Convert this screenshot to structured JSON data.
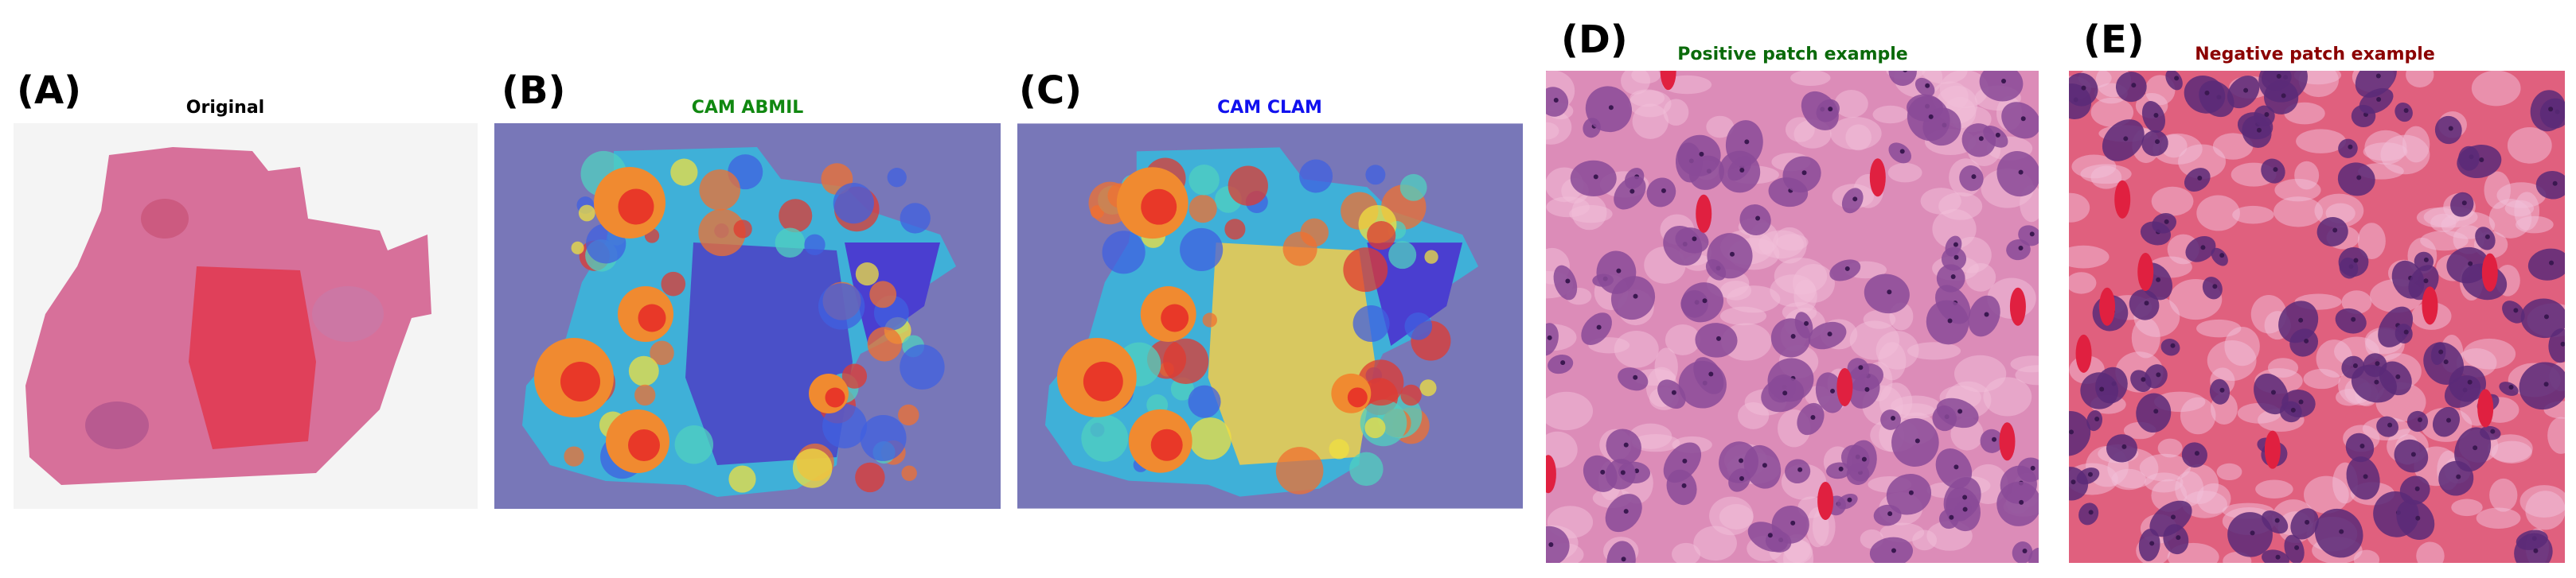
{
  "panels": [
    {
      "label": "(A)",
      "title": "Original"
    },
    {
      "label": "(B)",
      "title": "CAM ABMIL"
    },
    {
      "label": "(C)",
      "title": "CAM CLAM"
    },
    {
      "label": "(D)",
      "title": "Positive patch example"
    },
    {
      "label": "(E)",
      "title": "Negative patch example"
    }
  ]
}
